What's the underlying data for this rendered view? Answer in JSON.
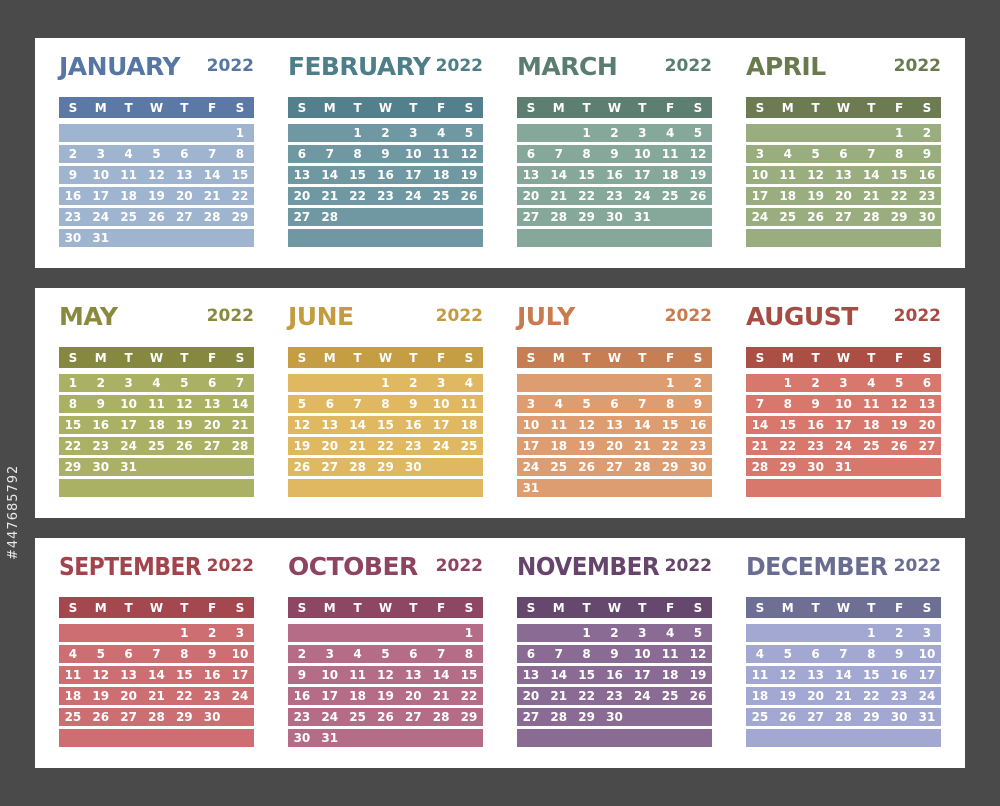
{
  "year": "2022",
  "weekday_labels": [
    "S",
    "M",
    "T",
    "W",
    "T",
    "F",
    "S"
  ],
  "stock_id": "#447685792",
  "months": [
    {
      "name": "JANUARY",
      "name_color": "#5676a3",
      "header_color": "#5c79a6",
      "row_color": "#9eb4cf",
      "start_day": 6,
      "days": 31
    },
    {
      "name": "FEBRUARY",
      "name_color": "#4e7e88",
      "header_color": "#53808c",
      "row_color": "#6f98a3",
      "start_day": 2,
      "days": 28
    },
    {
      "name": "MARCH",
      "name_color": "#5a7d70",
      "header_color": "#5d7f72",
      "row_color": "#86a89a",
      "start_day": 2,
      "days": 31
    },
    {
      "name": "APRIL",
      "name_color": "#6a7a4f",
      "header_color": "#6c7b51",
      "row_color": "#9aad7f",
      "start_day": 5,
      "days": 30
    },
    {
      "name": "MAY",
      "name_color": "#8a8a3f",
      "header_color": "#87883f",
      "row_color": "#aab064",
      "start_day": 0,
      "days": 31
    },
    {
      "name": "JUNE",
      "name_color": "#c49b40",
      "header_color": "#c59d43",
      "row_color": "#e0b861",
      "start_day": 3,
      "days": 30
    },
    {
      "name": "JULY",
      "name_color": "#c77b4f",
      "header_color": "#c67e52",
      "row_color": "#dd9d71",
      "start_day": 5,
      "days": 31
    },
    {
      "name": "AUGUST",
      "name_color": "#a64d43",
      "header_color": "#ab4f45",
      "row_color": "#d8776b",
      "start_day": 1,
      "days": 31
    },
    {
      "name": "SEPTEMBER",
      "name_color": "#a3434b",
      "header_color": "#a5474f",
      "row_color": "#cd6f72",
      "start_day": 4,
      "days": 30
    },
    {
      "name": "OCTOBER",
      "name_color": "#8e4460",
      "header_color": "#8e4762",
      "row_color": "#b56c86",
      "start_day": 6,
      "days": 31
    },
    {
      "name": "NOVEMBER",
      "name_color": "#66446b",
      "header_color": "#66476d",
      "row_color": "#8a6b94",
      "start_day": 2,
      "days": 30
    },
    {
      "name": "DECEMBER",
      "name_color": "#6a6d92",
      "header_color": "#6d6f94",
      "row_color": "#a3a8d3",
      "start_day": 4,
      "days": 31
    }
  ]
}
